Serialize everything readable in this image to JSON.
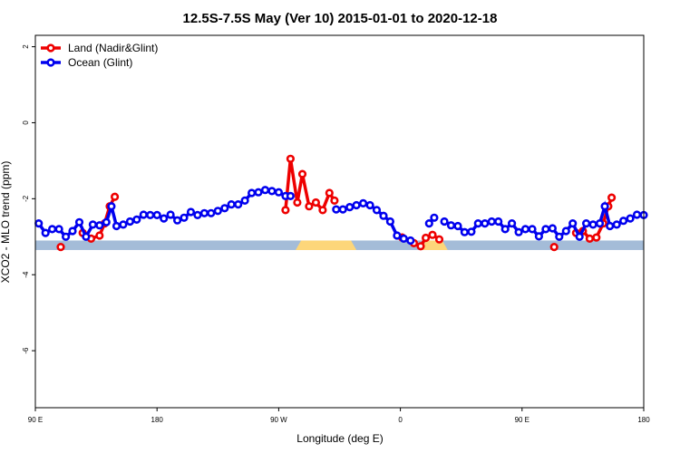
{
  "chart_data": {
    "type": "line",
    "title": "12.5S-7.5S May (Ver 10)   2015-01-01 to 2020-12-18",
    "xlabel": "Longitude (deg E)",
    "ylabel": "XCO2 - MLO trend (ppm)",
    "xlim": [
      90,
      450
    ],
    "ylim": [
      -7.5,
      2.3
    ],
    "x_ticks": [
      {
        "value": 90,
        "label": "90 E"
      },
      {
        "value": 162,
        "label": "180"
      },
      {
        "value": 234,
        "label": "90 W"
      },
      {
        "value": 306,
        "label": "0"
      },
      {
        "value": 378,
        "label": "90 E"
      },
      {
        "value": 450,
        "label": "180"
      }
    ],
    "y_ticks": [
      {
        "value": 2,
        "label": "2"
      },
      {
        "value": 0,
        "label": "0"
      },
      {
        "value": -2,
        "label": "-2"
      },
      {
        "value": -4,
        "label": "-4"
      },
      {
        "value": -6,
        "label": "-6"
      }
    ],
    "grid": false,
    "legend_position": "top-left",
    "surface_band": {
      "y_range": [
        -3.35,
        -3.1
      ],
      "ocean_color": "#a4bcd8",
      "land_color": "#fdd67a",
      "land_segments": [
        [
          244,
          280
        ],
        [
          318,
          334
        ]
      ]
    },
    "series": [
      {
        "name": "Land (Nadir&Glint)",
        "color": "#ee0000",
        "segments": [
          [
            [
              105,
              -3.27
            ]
          ],
          [
            [
              118,
              -2.9
            ],
            [
              123,
              -3.05
            ],
            [
              128,
              -2.97
            ],
            [
              131,
              -2.65
            ],
            [
              134,
              -2.2
            ],
            [
              137,
              -1.95
            ]
          ],
          [
            [
              238,
              -2.3
            ],
            [
              241,
              -0.95
            ],
            [
              245,
              -2.1
            ],
            [
              248,
              -1.35
            ],
            [
              252,
              -2.2
            ],
            [
              256,
              -2.1
            ],
            [
              260,
              -2.3
            ],
            [
              264,
              -1.85
            ],
            [
              267,
              -2.05
            ]
          ],
          [
            [
              307,
              -3.02
            ],
            [
              314,
              -3.17
            ],
            [
              318,
              -3.25
            ],
            [
              321,
              -3.03
            ],
            [
              325,
              -2.95
            ],
            [
              329,
              -3.07
            ]
          ],
          [
            [
              397,
              -3.27
            ]
          ],
          [
            [
              410,
              -2.9
            ],
            [
              414,
              -2.85
            ],
            [
              418,
              -3.05
            ],
            [
              422,
              -3.02
            ],
            [
              426,
              -2.65
            ],
            [
              429,
              -2.2
            ],
            [
              431,
              -1.97
            ]
          ]
        ]
      },
      {
        "name": "Ocean (Glint)",
        "color": "#0000ee",
        "segments": [
          [
            [
              92,
              -2.65
            ],
            [
              96,
              -2.9
            ],
            [
              100,
              -2.8
            ],
            [
              104,
              -2.8
            ],
            [
              108,
              -3.0
            ],
            [
              112,
              -2.85
            ],
            [
              116,
              -2.62
            ],
            [
              120,
              -3.0
            ],
            [
              124,
              -2.68
            ],
            [
              128,
              -2.7
            ],
            [
              132,
              -2.62
            ],
            [
              135,
              -2.2
            ],
            [
              138,
              -2.72
            ],
            [
              142,
              -2.68
            ],
            [
              146,
              -2.6
            ],
            [
              150,
              -2.55
            ],
            [
              154,
              -2.42
            ],
            [
              158,
              -2.43
            ],
            [
              162,
              -2.43
            ],
            [
              166,
              -2.52
            ],
            [
              170,
              -2.42
            ],
            [
              174,
              -2.57
            ],
            [
              178,
              -2.5
            ],
            [
              182,
              -2.35
            ],
            [
              186,
              -2.43
            ],
            [
              190,
              -2.38
            ],
            [
              194,
              -2.38
            ],
            [
              198,
              -2.32
            ],
            [
              202,
              -2.25
            ],
            [
              206,
              -2.15
            ],
            [
              210,
              -2.15
            ],
            [
              214,
              -2.05
            ],
            [
              218,
              -1.85
            ],
            [
              222,
              -1.83
            ],
            [
              226,
              -1.77
            ],
            [
              230,
              -1.8
            ],
            [
              234,
              -1.83
            ],
            [
              238,
              -1.93
            ],
            [
              241,
              -1.93
            ]
          ],
          [
            [
              268,
              -2.28
            ],
            [
              272,
              -2.28
            ],
            [
              276,
              -2.22
            ],
            [
              280,
              -2.17
            ],
            [
              284,
              -2.12
            ],
            [
              288,
              -2.17
            ],
            [
              292,
              -2.3
            ],
            [
              296,
              -2.45
            ],
            [
              300,
              -2.6
            ],
            [
              304,
              -2.97
            ],
            [
              308,
              -3.05
            ],
            [
              312,
              -3.1
            ]
          ],
          [
            [
              323,
              -2.65
            ],
            [
              326,
              -2.5
            ]
          ],
          [
            [
              332,
              -2.6
            ],
            [
              336,
              -2.7
            ],
            [
              340,
              -2.72
            ],
            [
              344,
              -2.88
            ],
            [
              348,
              -2.87
            ],
            [
              352,
              -2.65
            ],
            [
              356,
              -2.65
            ],
            [
              360,
              -2.6
            ],
            [
              364,
              -2.6
            ],
            [
              368,
              -2.8
            ],
            [
              372,
              -2.65
            ],
            [
              376,
              -2.88
            ],
            [
              380,
              -2.8
            ],
            [
              384,
              -2.8
            ],
            [
              388,
              -2.99
            ],
            [
              392,
              -2.8
            ],
            [
              396,
              -2.78
            ],
            [
              400,
              -3.0
            ],
            [
              404,
              -2.85
            ],
            [
              408,
              -2.65
            ],
            [
              412,
              -3.0
            ],
            [
              416,
              -2.65
            ],
            [
              420,
              -2.68
            ],
            [
              424,
              -2.65
            ],
            [
              427,
              -2.2
            ],
            [
              430,
              -2.72
            ],
            [
              434,
              -2.68
            ],
            [
              438,
              -2.58
            ],
            [
              442,
              -2.52
            ],
            [
              446,
              -2.42
            ],
            [
              450,
              -2.43
            ]
          ]
        ]
      }
    ]
  }
}
